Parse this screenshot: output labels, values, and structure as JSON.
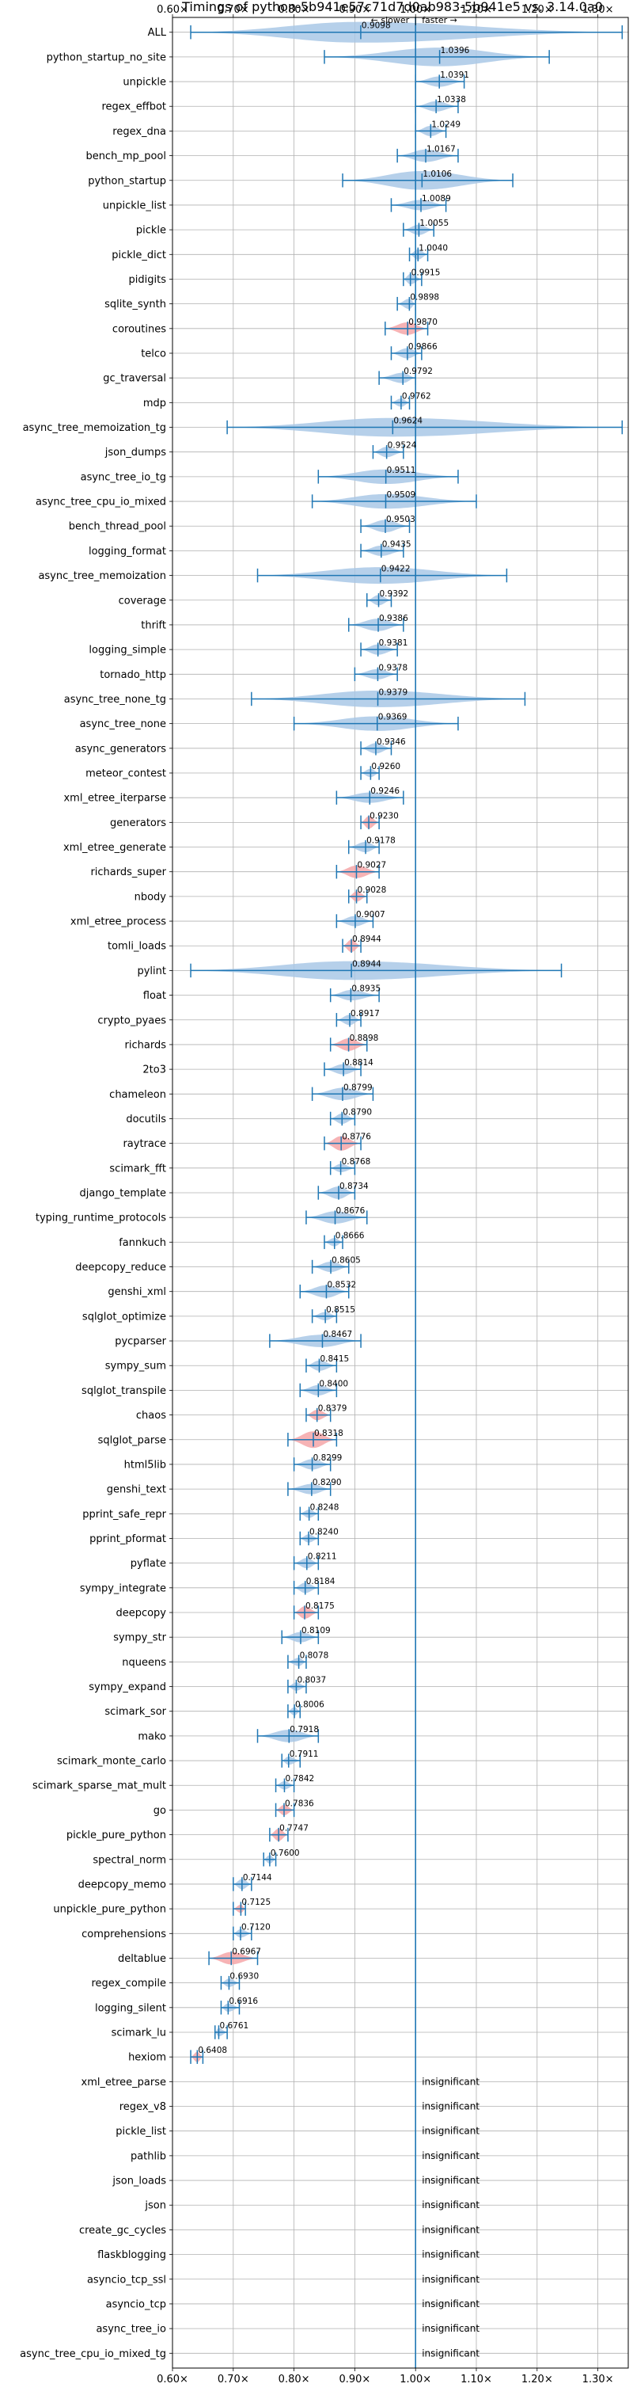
{
  "chart_data": {
    "type": "violin",
    "title": "Timings of python-5b941e57c71d7d0ab983-5b941e5 vs. 3.14.0a0",
    "direction_labels": {
      "slower": "← slower",
      "separator": "|",
      "faster": "faster →"
    },
    "xlim": [
      0.6,
      1.35
    ],
    "x_ticks": [
      0.6,
      0.7,
      0.8,
      0.9,
      1.0,
      1.1,
      1.2,
      1.3
    ],
    "x_tick_labels": [
      "0.60×",
      "0.70×",
      "0.80×",
      "0.90×",
      "1.00×",
      "1.10×",
      "1.20×",
      "1.30×"
    ],
    "reference_line": 1.0,
    "grid": true,
    "insignificant_label": "insignificant",
    "colors": {
      "violin": "#a9c8e6",
      "highlight": "#f4a6a8",
      "line": "#1f77b4",
      "grid": "#b0b0b0"
    },
    "benchmarks": [
      {
        "name": "ALL",
        "value": 0.9098,
        "label": "0.9098",
        "lo": 0.63,
        "hi": 1.34,
        "w": 1.0,
        "hl": false
      },
      {
        "name": "python_startup_no_site",
        "value": 1.0396,
        "label": "1.0396",
        "lo": 0.85,
        "hi": 1.22,
        "w": 0.9,
        "hl": false
      },
      {
        "name": "unpickle",
        "value": 1.0391,
        "label": "1.0391",
        "lo": 1.0,
        "hi": 1.08,
        "w": 0.5,
        "hl": false
      },
      {
        "name": "regex_effbot",
        "value": 1.0338,
        "label": "1.0338",
        "lo": 1.0,
        "hi": 1.07,
        "w": 0.5,
        "hl": false
      },
      {
        "name": "regex_dna",
        "value": 1.0249,
        "label": "1.0249",
        "lo": 1.0,
        "hi": 1.05,
        "w": 0.5,
        "hl": false
      },
      {
        "name": "bench_mp_pool",
        "value": 1.0167,
        "label": "1.0167",
        "lo": 0.97,
        "hi": 1.07,
        "w": 0.6,
        "hl": false
      },
      {
        "name": "python_startup",
        "value": 1.0106,
        "label": "1.0106",
        "lo": 0.88,
        "hi": 1.16,
        "w": 0.9,
        "hl": false
      },
      {
        "name": "unpickle_list",
        "value": 1.0089,
        "label": "1.0089",
        "lo": 0.96,
        "hi": 1.05,
        "w": 0.5,
        "hl": false
      },
      {
        "name": "pickle",
        "value": 1.0055,
        "label": "1.0055",
        "lo": 0.98,
        "hi": 1.03,
        "w": 0.5,
        "hl": false
      },
      {
        "name": "pickle_dict",
        "value": 1.004,
        "label": "1.0040",
        "lo": 0.99,
        "hi": 1.02,
        "w": 0.5,
        "hl": false
      },
      {
        "name": "pidigits",
        "value": 0.9915,
        "label": "0.9915",
        "lo": 0.98,
        "hi": 1.01,
        "w": 0.5,
        "hl": false
      },
      {
        "name": "sqlite_synth",
        "value": 0.9898,
        "label": "0.9898",
        "lo": 0.97,
        "hi": 1.0,
        "w": 0.5,
        "hl": false
      },
      {
        "name": "coroutines",
        "value": 0.987,
        "label": "0.9870",
        "lo": 0.95,
        "hi": 1.02,
        "w": 0.6,
        "hl": true
      },
      {
        "name": "telco",
        "value": 0.9866,
        "label": "0.9866",
        "lo": 0.96,
        "hi": 1.01,
        "w": 0.5,
        "hl": false
      },
      {
        "name": "gc_traversal",
        "value": 0.9792,
        "label": "0.9792",
        "lo": 0.94,
        "hi": 1.0,
        "w": 0.5,
        "hl": false
      },
      {
        "name": "mdp",
        "value": 0.9762,
        "label": "0.9762",
        "lo": 0.96,
        "hi": 0.99,
        "w": 0.4,
        "hl": false
      },
      {
        "name": "async_tree_memoization_tg",
        "value": 0.9624,
        "label": "0.9624",
        "lo": 0.69,
        "hi": 1.34,
        "w": 0.9,
        "hl": false
      },
      {
        "name": "json_dumps",
        "value": 0.9524,
        "label": "0.9524",
        "lo": 0.93,
        "hi": 0.98,
        "w": 0.5,
        "hl": false
      },
      {
        "name": "async_tree_io_tg",
        "value": 0.9511,
        "label": "0.9511",
        "lo": 0.84,
        "hi": 1.07,
        "w": 0.7,
        "hl": false
      },
      {
        "name": "async_tree_cpu_io_mixed",
        "value": 0.9509,
        "label": "0.9509",
        "lo": 0.83,
        "hi": 1.1,
        "w": 0.7,
        "hl": false
      },
      {
        "name": "bench_thread_pool",
        "value": 0.9503,
        "label": "0.9503",
        "lo": 0.91,
        "hi": 0.99,
        "w": 0.6,
        "hl": false
      },
      {
        "name": "logging_format",
        "value": 0.9435,
        "label": "0.9435",
        "lo": 0.91,
        "hi": 0.98,
        "w": 0.5,
        "hl": false
      },
      {
        "name": "async_tree_memoization",
        "value": 0.9422,
        "label": "0.9422",
        "lo": 0.74,
        "hi": 1.15,
        "w": 0.8,
        "hl": false
      },
      {
        "name": "coverage",
        "value": 0.9392,
        "label": "0.9392",
        "lo": 0.92,
        "hi": 0.96,
        "w": 0.5,
        "hl": false
      },
      {
        "name": "thrift",
        "value": 0.9386,
        "label": "0.9386",
        "lo": 0.89,
        "hi": 0.98,
        "w": 0.6,
        "hl": false
      },
      {
        "name": "logging_simple",
        "value": 0.9381,
        "label": "0.9381",
        "lo": 0.91,
        "hi": 0.97,
        "w": 0.5,
        "hl": false
      },
      {
        "name": "tornado_http",
        "value": 0.9378,
        "label": "0.9378",
        "lo": 0.9,
        "hi": 0.97,
        "w": 0.5,
        "hl": false
      },
      {
        "name": "async_tree_none_tg",
        "value": 0.9379,
        "label": "0.9379",
        "lo": 0.73,
        "hi": 1.18,
        "w": 0.8,
        "hl": false
      },
      {
        "name": "async_tree_none",
        "value": 0.9369,
        "label": "0.9369",
        "lo": 0.8,
        "hi": 1.07,
        "w": 0.7,
        "hl": false
      },
      {
        "name": "async_generators",
        "value": 0.9346,
        "label": "0.9346",
        "lo": 0.91,
        "hi": 0.96,
        "w": 0.5,
        "hl": false
      },
      {
        "name": "meteor_contest",
        "value": 0.926,
        "label": "0.9260",
        "lo": 0.91,
        "hi": 0.94,
        "w": 0.4,
        "hl": false
      },
      {
        "name": "xml_etree_iterparse",
        "value": 0.9246,
        "label": "0.9246",
        "lo": 0.87,
        "hi": 0.98,
        "w": 0.5,
        "hl": false
      },
      {
        "name": "generators",
        "value": 0.923,
        "label": "0.9230",
        "lo": 0.91,
        "hi": 0.94,
        "w": 0.6,
        "hl": true
      },
      {
        "name": "xml_etree_generate",
        "value": 0.9178,
        "label": "0.9178",
        "lo": 0.89,
        "hi": 0.94,
        "w": 0.5,
        "hl": false
      },
      {
        "name": "richards_super",
        "value": 0.9027,
        "label": "0.9027",
        "lo": 0.87,
        "hi": 0.94,
        "w": 0.6,
        "hl": true
      },
      {
        "name": "nbody",
        "value": 0.9028,
        "label": "0.9028",
        "lo": 0.89,
        "hi": 0.92,
        "w": 0.5,
        "hl": true
      },
      {
        "name": "xml_etree_process",
        "value": 0.9007,
        "label": "0.9007",
        "lo": 0.87,
        "hi": 0.93,
        "w": 0.5,
        "hl": false
      },
      {
        "name": "tomli_loads",
        "value": 0.8944,
        "label": "0.8944",
        "lo": 0.88,
        "hi": 0.91,
        "w": 0.6,
        "hl": true
      },
      {
        "name": "pylint",
        "value": 0.8944,
        "label": "0.8944",
        "lo": 0.63,
        "hi": 1.24,
        "w": 0.9,
        "hl": false
      },
      {
        "name": "float",
        "value": 0.8935,
        "label": "0.8935",
        "lo": 0.86,
        "hi": 0.94,
        "w": 0.5,
        "hl": false
      },
      {
        "name": "crypto_pyaes",
        "value": 0.8917,
        "label": "0.8917",
        "lo": 0.87,
        "hi": 0.91,
        "w": 0.5,
        "hl": false
      },
      {
        "name": "richards",
        "value": 0.8898,
        "label": "0.8898",
        "lo": 0.86,
        "hi": 0.92,
        "w": 0.6,
        "hl": true
      },
      {
        "name": "2to3",
        "value": 0.8814,
        "label": "0.8814",
        "lo": 0.85,
        "hi": 0.91,
        "w": 0.5,
        "hl": false
      },
      {
        "name": "chameleon",
        "value": 0.8799,
        "label": "0.8799",
        "lo": 0.83,
        "hi": 0.93,
        "w": 0.6,
        "hl": false
      },
      {
        "name": "docutils",
        "value": 0.879,
        "label": "0.8790",
        "lo": 0.86,
        "hi": 0.9,
        "w": 0.5,
        "hl": false
      },
      {
        "name": "raytrace",
        "value": 0.8776,
        "label": "0.8776",
        "lo": 0.85,
        "hi": 0.91,
        "w": 0.7,
        "hl": true
      },
      {
        "name": "scimark_fft",
        "value": 0.8768,
        "label": "0.8768",
        "lo": 0.86,
        "hi": 0.9,
        "w": 0.4,
        "hl": false
      },
      {
        "name": "django_template",
        "value": 0.8734,
        "label": "0.8734",
        "lo": 0.84,
        "hi": 0.9,
        "w": 0.6,
        "hl": false
      },
      {
        "name": "typing_runtime_protocols",
        "value": 0.8676,
        "label": "0.8676",
        "lo": 0.82,
        "hi": 0.92,
        "w": 0.6,
        "hl": false
      },
      {
        "name": "fannkuch",
        "value": 0.8666,
        "label": "0.8666",
        "lo": 0.85,
        "hi": 0.88,
        "w": 0.4,
        "hl": false
      },
      {
        "name": "deepcopy_reduce",
        "value": 0.8605,
        "label": "0.8605",
        "lo": 0.83,
        "hi": 0.89,
        "w": 0.5,
        "hl": false
      },
      {
        "name": "genshi_xml",
        "value": 0.8532,
        "label": "0.8532",
        "lo": 0.81,
        "hi": 0.89,
        "w": 0.6,
        "hl": false
      },
      {
        "name": "sqlglot_optimize",
        "value": 0.8515,
        "label": "0.8515",
        "lo": 0.83,
        "hi": 0.87,
        "w": 0.4,
        "hl": false
      },
      {
        "name": "pycparser",
        "value": 0.8467,
        "label": "0.8467",
        "lo": 0.76,
        "hi": 0.91,
        "w": 0.6,
        "hl": false
      },
      {
        "name": "sympy_sum",
        "value": 0.8415,
        "label": "0.8415",
        "lo": 0.82,
        "hi": 0.87,
        "w": 0.5,
        "hl": false
      },
      {
        "name": "sqlglot_transpile",
        "value": 0.84,
        "label": "0.8400",
        "lo": 0.81,
        "hi": 0.87,
        "w": 0.5,
        "hl": false
      },
      {
        "name": "chaos",
        "value": 0.8379,
        "label": "0.8379",
        "lo": 0.82,
        "hi": 0.86,
        "w": 0.5,
        "hl": true
      },
      {
        "name": "sqlglot_parse",
        "value": 0.8318,
        "label": "0.8318",
        "lo": 0.79,
        "hi": 0.87,
        "w": 0.8,
        "hl": true
      },
      {
        "name": "html5lib",
        "value": 0.8299,
        "label": "0.8299",
        "lo": 0.8,
        "hi": 0.86,
        "w": 0.5,
        "hl": false
      },
      {
        "name": "genshi_text",
        "value": 0.829,
        "label": "0.8290",
        "lo": 0.79,
        "hi": 0.86,
        "w": 0.5,
        "hl": false
      },
      {
        "name": "pprint_safe_repr",
        "value": 0.8248,
        "label": "0.8248",
        "lo": 0.81,
        "hi": 0.84,
        "w": 0.4,
        "hl": false
      },
      {
        "name": "pprint_pformat",
        "value": 0.824,
        "label": "0.8240",
        "lo": 0.81,
        "hi": 0.84,
        "w": 0.4,
        "hl": false
      },
      {
        "name": "pyflate",
        "value": 0.8211,
        "label": "0.8211",
        "lo": 0.8,
        "hi": 0.84,
        "w": 0.5,
        "hl": false
      },
      {
        "name": "sympy_integrate",
        "value": 0.8184,
        "label": "0.8184",
        "lo": 0.8,
        "hi": 0.84,
        "w": 0.5,
        "hl": false
      },
      {
        "name": "deepcopy",
        "value": 0.8175,
        "label": "0.8175",
        "lo": 0.8,
        "hi": 0.84,
        "w": 0.6,
        "hl": true
      },
      {
        "name": "sympy_str",
        "value": 0.8109,
        "label": "0.8109",
        "lo": 0.78,
        "hi": 0.84,
        "w": 0.5,
        "hl": false
      },
      {
        "name": "nqueens",
        "value": 0.8078,
        "label": "0.8078",
        "lo": 0.79,
        "hi": 0.82,
        "w": 0.4,
        "hl": false
      },
      {
        "name": "sympy_expand",
        "value": 0.8037,
        "label": "0.8037",
        "lo": 0.79,
        "hi": 0.82,
        "w": 0.4,
        "hl": false
      },
      {
        "name": "scimark_sor",
        "value": 0.8006,
        "label": "0.8006",
        "lo": 0.79,
        "hi": 0.81,
        "w": 0.4,
        "hl": false
      },
      {
        "name": "mako",
        "value": 0.7918,
        "label": "0.7918",
        "lo": 0.74,
        "hi": 0.84,
        "w": 0.6,
        "hl": false
      },
      {
        "name": "scimark_monte_carlo",
        "value": 0.7911,
        "label": "0.7911",
        "lo": 0.78,
        "hi": 0.81,
        "w": 0.4,
        "hl": false
      },
      {
        "name": "scimark_sparse_mat_mult",
        "value": 0.7842,
        "label": "0.7842",
        "lo": 0.77,
        "hi": 0.8,
        "w": 0.4,
        "hl": false
      },
      {
        "name": "go",
        "value": 0.7836,
        "label": "0.7836",
        "lo": 0.77,
        "hi": 0.8,
        "w": 0.5,
        "hl": true
      },
      {
        "name": "pickle_pure_python",
        "value": 0.7747,
        "label": "0.7747",
        "lo": 0.76,
        "hi": 0.79,
        "w": 0.6,
        "hl": true
      },
      {
        "name": "spectral_norm",
        "value": 0.76,
        "label": "0.7600",
        "lo": 0.75,
        "hi": 0.77,
        "w": 0.4,
        "hl": false
      },
      {
        "name": "deepcopy_memo",
        "value": 0.7144,
        "label": "0.7144",
        "lo": 0.7,
        "hi": 0.73,
        "w": 0.5,
        "hl": false
      },
      {
        "name": "unpickle_pure_python",
        "value": 0.7125,
        "label": "0.7125",
        "lo": 0.7,
        "hi": 0.72,
        "w": 0.4,
        "hl": true
      },
      {
        "name": "comprehensions",
        "value": 0.712,
        "label": "0.7120",
        "lo": 0.7,
        "hi": 0.73,
        "w": 0.4,
        "hl": false
      },
      {
        "name": "deltablue",
        "value": 0.6967,
        "label": "0.6967",
        "lo": 0.66,
        "hi": 0.74,
        "w": 0.6,
        "hl": true
      },
      {
        "name": "regex_compile",
        "value": 0.693,
        "label": "0.6930",
        "lo": 0.68,
        "hi": 0.71,
        "w": 0.4,
        "hl": false
      },
      {
        "name": "logging_silent",
        "value": 0.6916,
        "label": "0.6916",
        "lo": 0.68,
        "hi": 0.71,
        "w": 0.4,
        "hl": false
      },
      {
        "name": "scimark_lu",
        "value": 0.6761,
        "label": "0.6761",
        "lo": 0.67,
        "hi": 0.69,
        "w": 0.4,
        "hl": false
      },
      {
        "name": "hexiom",
        "value": 0.6408,
        "label": "0.6408",
        "lo": 0.63,
        "hi": 0.65,
        "w": 0.5,
        "hl": true
      },
      {
        "name": "xml_etree_parse",
        "insignificant": true
      },
      {
        "name": "regex_v8",
        "insignificant": true
      },
      {
        "name": "pickle_list",
        "insignificant": true
      },
      {
        "name": "pathlib",
        "insignificant": true
      },
      {
        "name": "json_loads",
        "insignificant": true
      },
      {
        "name": "json",
        "insignificant": true
      },
      {
        "name": "create_gc_cycles",
        "insignificant": true
      },
      {
        "name": "flaskblogging",
        "insignificant": true
      },
      {
        "name": "asyncio_tcp_ssl",
        "insignificant": true
      },
      {
        "name": "asyncio_tcp",
        "insignificant": true
      },
      {
        "name": "async_tree_io",
        "insignificant": true
      },
      {
        "name": "async_tree_cpu_io_mixed_tg",
        "insignificant": true
      }
    ]
  }
}
